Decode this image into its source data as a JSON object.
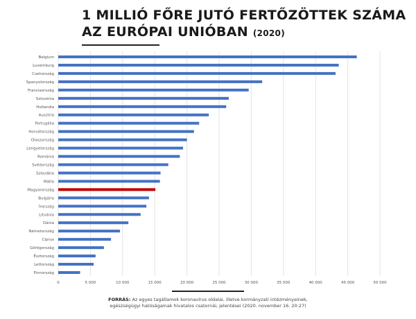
{
  "title": {
    "line1": "1 MILLIÓ FŐRE JUTÓ FERTŐZÖTTEK SZÁMA",
    "line2": "AZ EURÓPAI UNIÓBAN",
    "year": "(2020)"
  },
  "source": {
    "label": "FORRÁS:",
    "line1": "Az egyes tagállamok koronavírus oldalai, illetve kormányzati intézményeinek,",
    "line2": "egészségügyi hatóságainak hivatalos csatornái, jelentései (2020. november 16. 20:27)"
  },
  "chart_data": {
    "type": "bar",
    "orientation": "horizontal",
    "categories": [
      "Belgium",
      "Luxemburg",
      "Csehország",
      "Spanyolország",
      "Franciaország",
      "Szlovénia",
      "Hollandia",
      "Ausztria",
      "Portugália",
      "Horvátország",
      "Olaszország",
      "Lengyelország",
      "Románia",
      "Svédország",
      "Szlovákia",
      "Málta",
      "Magyarország",
      "Bulgária",
      "Írország",
      "Litvánia",
      "Dánia",
      "Németország",
      "Ciprus",
      "Görögország",
      "Észtország",
      "Lettország",
      "Finnország"
    ],
    "values": [
      46400,
      43600,
      43100,
      31700,
      29600,
      26500,
      26100,
      23400,
      21900,
      21100,
      20000,
      19400,
      18900,
      17100,
      15900,
      15800,
      15100,
      14100,
      13700,
      12800,
      10900,
      9600,
      8200,
      7100,
      5800,
      5500,
      3400
    ],
    "highlight": "Magyarország",
    "colors": {
      "default": "#4472c4",
      "highlight": "#c00000"
    },
    "xlim": [
      0,
      50000
    ],
    "xticks": [
      0,
      5000,
      10000,
      15000,
      20000,
      25000,
      30000,
      35000,
      40000,
      45000,
      50000
    ],
    "xtick_labels": [
      "0",
      "5 000",
      "10 000",
      "15 000",
      "20 000",
      "25 000",
      "30 000",
      "35 000",
      "40 000",
      "45 000",
      "50 000"
    ],
    "grid": "vertical",
    "title": "1 MILLIÓ FŐRE JUTÓ FERTŐZÖTTEK SZÁMA AZ EURÓPAI UNIÓBAN (2020)",
    "xlabel": "",
    "ylabel": ""
  }
}
